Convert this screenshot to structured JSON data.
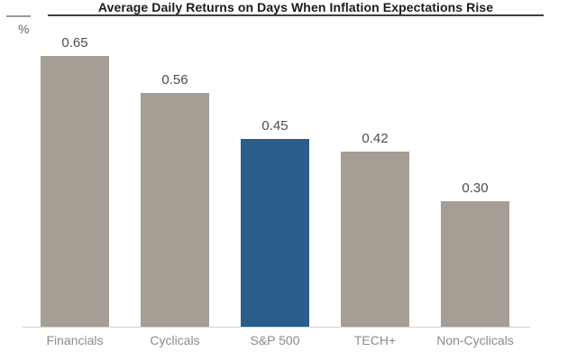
{
  "header": {
    "title": "Average Daily Returns on Days When Inflation Expectations Rise",
    "y_axis_unit": "%"
  },
  "colors": {
    "bar_default": "#a69d95",
    "bar_highlight": "#285d8c",
    "value_label": "#4d4d4d",
    "category_label": "#8c8c8c",
    "baseline": "#d2d2d2",
    "title_underline": "#3f3f3f",
    "background": "#ffffff"
  },
  "chart_data": {
    "type": "bar",
    "title": "Average Daily Returns on Days When Inflation Expectations Rise",
    "xlabel": "",
    "ylabel": "%",
    "categories": [
      "Financials",
      "Cyclicals",
      "S&P 500",
      "TECH+",
      "Non-Cyclicals"
    ],
    "values": [
      0.65,
      0.56,
      0.45,
      0.42,
      0.3
    ],
    "value_labels": [
      "0.65",
      "0.56",
      "0.45",
      "0.42",
      "0.30"
    ],
    "highlight_index": 2,
    "highlight_category": "S&P 500",
    "ylim": [
      0,
      0.78
    ],
    "grid": false,
    "legend": false,
    "y_axis_ticks_visible": false,
    "bar_colors": {
      "default": "#a69d95",
      "highlight": "#285d8c"
    }
  }
}
